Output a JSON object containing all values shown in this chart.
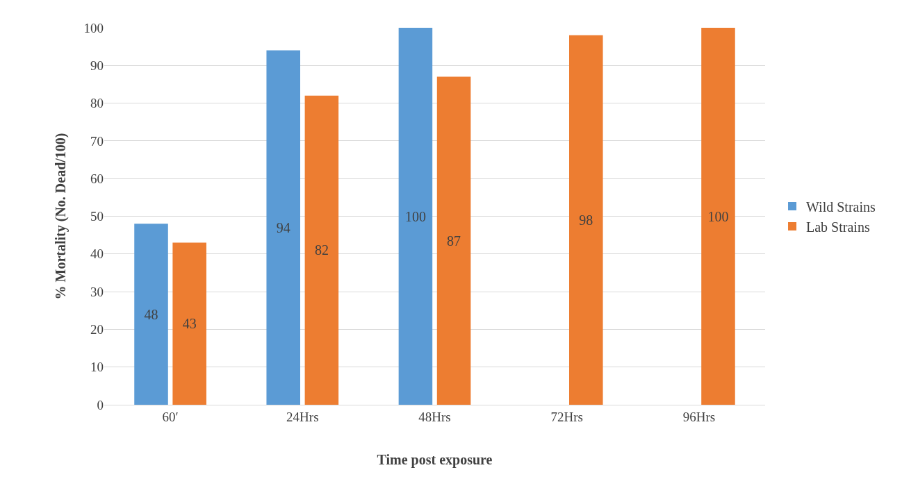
{
  "chart_data": {
    "type": "bar",
    "xlabel": "Time post exposure",
    "ylabel": "% Mortality (No. Dead/100)",
    "categories": [
      "60′",
      "24Hrs",
      "48Hrs",
      "72Hrs",
      "96Hrs"
    ],
    "series": [
      {
        "name": "Wild Strains",
        "color": "#5b9bd5",
        "values": [
          48,
          94,
          100,
          null,
          null
        ]
      },
      {
        "name": "Lab Strains",
        "color": "#ed7d31",
        "values": [
          43,
          82,
          87,
          98,
          100
        ]
      }
    ],
    "ylim": [
      0,
      100
    ],
    "yticks": [
      0,
      10,
      20,
      30,
      40,
      50,
      60,
      70,
      80,
      90,
      100
    ],
    "grid": "y",
    "legend": "right",
    "data_labels": true
  }
}
